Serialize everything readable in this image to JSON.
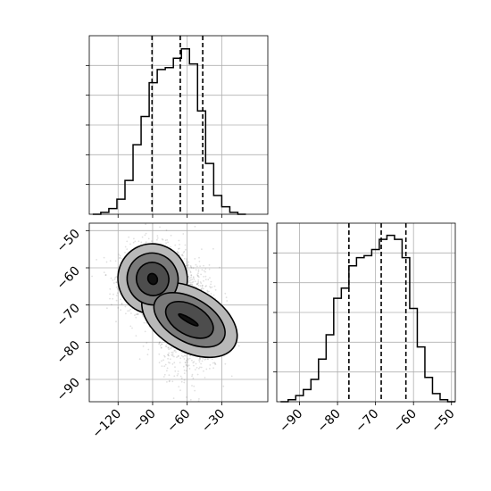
{
  "chart_data": [
    {
      "panel": "x0-marginal",
      "type": "histogram",
      "xlim": [
        -145,
        10
      ],
      "x_ticks": [
        -120,
        -90,
        -60,
        -30
      ],
      "quantile_lines": [
        -90.5,
        -66.0,
        -46.5
      ],
      "grid": true,
      "bins": [
        {
          "x0": -142,
          "x1": -135,
          "count": 0
        },
        {
          "x0": -135,
          "x1": -128,
          "count": 1
        },
        {
          "x0": -128,
          "x1": -121,
          "count": 3
        },
        {
          "x0": -121,
          "x1": -114,
          "count": 8
        },
        {
          "x0": -114,
          "x1": -107,
          "count": 18
        },
        {
          "x0": -107,
          "x1": -100,
          "count": 37
        },
        {
          "x0": -100,
          "x1": -93,
          "count": 52
        },
        {
          "x0": -93,
          "x1": -86,
          "count": 70
        },
        {
          "x0": -86,
          "x1": -79,
          "count": 77
        },
        {
          "x0": -79,
          "x1": -72,
          "count": 78
        },
        {
          "x0": -72,
          "x1": -65,
          "count": 83
        },
        {
          "x0": -65,
          "x1": -58,
          "count": 88
        },
        {
          "x0": -58,
          "x1": -51,
          "count": 80
        },
        {
          "x0": -51,
          "x1": -44,
          "count": 55
        },
        {
          "x0": -44,
          "x1": -37,
          "count": 27
        },
        {
          "x0": -37,
          "x1": -30,
          "count": 10
        },
        {
          "x0": -30,
          "x1": -23,
          "count": 4
        },
        {
          "x0": -23,
          "x1": -16,
          "count": 1
        },
        {
          "x0": -16,
          "x1": -9,
          "count": 0
        }
      ],
      "ylim": [
        0,
        95
      ]
    },
    {
      "panel": "joint-density",
      "type": "scatter-contour",
      "xlim": [
        -145,
        10
      ],
      "ylim": [
        -96,
        -48
      ],
      "x_ticks": [
        -120,
        -90,
        -60,
        -30
      ],
      "y_ticks": [
        -50,
        -60,
        -70,
        -80,
        -90
      ],
      "grid": true,
      "clusters": [
        {
          "mean_x": -90,
          "mean_y": -63,
          "std_x": 14,
          "std_y": 4.5,
          "n": 1500
        },
        {
          "mean_x": -58,
          "mean_y": -74,
          "std_x": 13,
          "std_y": 7,
          "n": 1500
        }
      ],
      "contour_levels": [
        {
          "fill": "#b8b8b8",
          "blobs": [
            [
              -90,
              -63,
              30,
              9.5
            ],
            [
              -58,
              -74,
              27,
              14
            ]
          ]
        },
        {
          "fill": "#7a7a7a",
          "blobs": [
            [
              -90,
              -63,
              22,
              7
            ],
            [
              -58,
              -74,
              19,
              10.5
            ]
          ]
        },
        {
          "fill": "#4d4d4d",
          "blobs": [
            [
              -90,
              -63,
              14,
              4.5
            ],
            [
              -58,
              -74,
              13,
              7
            ]
          ]
        },
        {
          "fill": "#111111",
          "blobs": [
            [
              -90,
              -63,
              4,
              1.5
            ],
            [
              -59,
              -74,
              2,
              3
            ]
          ]
        }
      ]
    },
    {
      "panel": "x1-marginal",
      "type": "histogram",
      "xlim": [
        -96,
        -49
      ],
      "x_ticks": [
        -90,
        -80,
        -70,
        -60,
        -50
      ],
      "quantile_lines": [
        -77.0,
        -68.5,
        -62.0
      ],
      "grid": true,
      "bins": [
        {
          "x0": -95,
          "x1": -93,
          "count": 0
        },
        {
          "x0": -93,
          "x1": -91,
          "count": 1
        },
        {
          "x0": -91,
          "x1": -89,
          "count": 3
        },
        {
          "x0": -89,
          "x1": -87,
          "count": 6
        },
        {
          "x0": -87,
          "x1": -85,
          "count": 11
        },
        {
          "x0": -85,
          "x1": -83,
          "count": 21
        },
        {
          "x0": -83,
          "x1": -81,
          "count": 33
        },
        {
          "x0": -81,
          "x1": -79,
          "count": 51
        },
        {
          "x0": -79,
          "x1": -77,
          "count": 56
        },
        {
          "x0": -77,
          "x1": -75,
          "count": 67
        },
        {
          "x0": -75,
          "x1": -73,
          "count": 71
        },
        {
          "x0": -73,
          "x1": -71,
          "count": 72
        },
        {
          "x0": -71,
          "x1": -69,
          "count": 75
        },
        {
          "x0": -69,
          "x1": -67,
          "count": 80
        },
        {
          "x0": -67,
          "x1": -65,
          "count": 82
        },
        {
          "x0": -65,
          "x1": -63,
          "count": 80
        },
        {
          "x0": -63,
          "x1": -61,
          "count": 71
        },
        {
          "x0": -61,
          "x1": -59,
          "count": 46
        },
        {
          "x0": -59,
          "x1": -57,
          "count": 27
        },
        {
          "x0": -57,
          "x1": -55,
          "count": 12
        },
        {
          "x0": -55,
          "x1": -53,
          "count": 4
        },
        {
          "x0": -53,
          "x1": -51,
          "count": 1
        },
        {
          "x0": -51,
          "x1": -49,
          "count": 0
        }
      ],
      "ylim": [
        0,
        88
      ]
    }
  ]
}
